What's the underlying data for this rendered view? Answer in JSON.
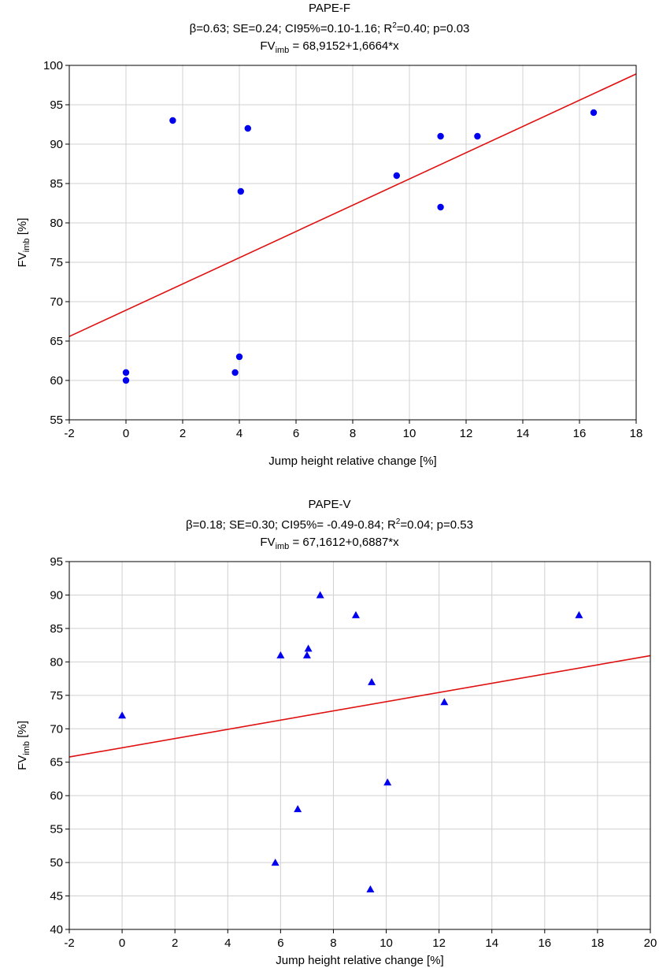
{
  "chart_data": [
    {
      "type": "scatter",
      "title": "PAPE-F",
      "stats": {
        "beta": "β=0.63;",
        "se": "SE=0.24;",
        "ci": "CI95%=0.10-1.16;",
        "r2_pre": "R",
        "r2_sup": "2",
        "r2_post": "=0.40;",
        "p": "p=0.03"
      },
      "equation": {
        "pre": "FV",
        "sub": "imb",
        "post": " = 68,9152+1,6664*x"
      },
      "xlabel": "Jump height relative change [%]",
      "ylabel": {
        "main": "FV",
        "sub": "imb",
        "unit": " [%]"
      },
      "xlim": [
        -2,
        18
      ],
      "ylim": [
        55,
        100
      ],
      "xticks": [
        -2,
        0,
        2,
        4,
        6,
        8,
        10,
        12,
        14,
        16,
        18
      ],
      "yticks": [
        55,
        60,
        65,
        70,
        75,
        80,
        85,
        90,
        95,
        100
      ],
      "grid": true,
      "marker": "circle",
      "marker_color": "#0000ee",
      "line_color": "#e01010",
      "regression": {
        "intercept": 68.9152,
        "slope": 1.6664
      },
      "points": [
        {
          "x": 0,
          "y": 61
        },
        {
          "x": 0,
          "y": 60
        },
        {
          "x": 1.65,
          "y": 93
        },
        {
          "x": 3.85,
          "y": 61
        },
        {
          "x": 4.0,
          "y": 63
        },
        {
          "x": 4.05,
          "y": 84
        },
        {
          "x": 4.3,
          "y": 92
        },
        {
          "x": 9.55,
          "y": 86
        },
        {
          "x": 11.1,
          "y": 91
        },
        {
          "x": 11.1,
          "y": 82
        },
        {
          "x": 12.4,
          "y": 91
        },
        {
          "x": 16.5,
          "y": 94
        }
      ]
    },
    {
      "type": "scatter",
      "title": "PAPE-V",
      "stats": {
        "beta": "β=0.18;",
        "se": "SE=0.30;",
        "ci": "CI95%= -0.49-0.84;",
        "r2_pre": "R",
        "r2_sup": "2",
        "r2_post": "=0.04;",
        "p": "p=0.53"
      },
      "equation": {
        "pre": "FV",
        "sub": "imb",
        "post": " = 67,1612+0,6887*x"
      },
      "xlabel": "Jump height relative change [%]",
      "ylabel": {
        "main": "FV",
        "sub": "imb",
        "unit": " [%]"
      },
      "xlim": [
        -2,
        20
      ],
      "ylim": [
        40,
        95
      ],
      "xticks": [
        -2,
        0,
        2,
        4,
        6,
        8,
        10,
        12,
        14,
        16,
        18,
        20
      ],
      "yticks": [
        40,
        45,
        50,
        55,
        60,
        65,
        70,
        75,
        80,
        85,
        90,
        95
      ],
      "grid": true,
      "marker": "triangle",
      "marker_color": "#0000ee",
      "line_color": "#e01010",
      "regression": {
        "intercept": 67.1612,
        "slope": 0.6887
      },
      "points": [
        {
          "x": 0,
          "y": 72
        },
        {
          "x": 5.8,
          "y": 50
        },
        {
          "x": 6.0,
          "y": 81
        },
        {
          "x": 6.65,
          "y": 58
        },
        {
          "x": 7.0,
          "y": 81
        },
        {
          "x": 7.05,
          "y": 82
        },
        {
          "x": 7.5,
          "y": 90
        },
        {
          "x": 8.85,
          "y": 87
        },
        {
          "x": 9.4,
          "y": 46
        },
        {
          "x": 9.45,
          "y": 77
        },
        {
          "x": 10.05,
          "y": 62
        },
        {
          "x": 12.2,
          "y": 74
        },
        {
          "x": 17.3,
          "y": 87
        }
      ]
    }
  ]
}
